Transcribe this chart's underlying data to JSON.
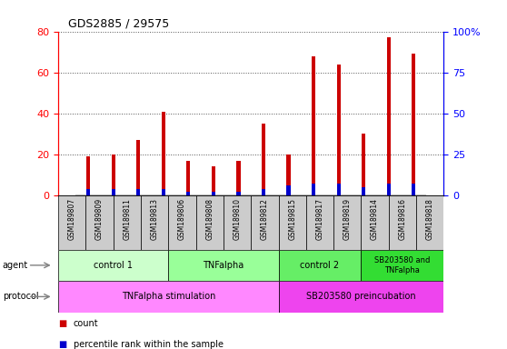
{
  "title": "GDS2885 / 29575",
  "samples": [
    "GSM189807",
    "GSM189809",
    "GSM189811",
    "GSM189813",
    "GSM189806",
    "GSM189808",
    "GSM189810",
    "GSM189812",
    "GSM189815",
    "GSM189817",
    "GSM189819",
    "GSM189814",
    "GSM189816",
    "GSM189818"
  ],
  "red_values": [
    19,
    20,
    27,
    41,
    17,
    14,
    17,
    35,
    20,
    68,
    64,
    30,
    77,
    69
  ],
  "blue_values": [
    3,
    3,
    3,
    3,
    2,
    2,
    2,
    3,
    5,
    6,
    6,
    4,
    6,
    6
  ],
  "ylim_left": [
    0,
    80
  ],
  "ylim_right": [
    0,
    100
  ],
  "left_ticks": [
    0,
    20,
    40,
    60,
    80
  ],
  "right_ticks": [
    0,
    25,
    50,
    75,
    100
  ],
  "right_tick_labels": [
    "0",
    "25",
    "50",
    "75",
    "100%"
  ],
  "agent_groups": [
    {
      "label": "control 1",
      "start": 0,
      "end": 4,
      "color": "#ccffcc"
    },
    {
      "label": "TNFalpha",
      "start": 4,
      "end": 8,
      "color": "#99ff99"
    },
    {
      "label": "control 2",
      "start": 8,
      "end": 11,
      "color": "#66ee66"
    },
    {
      "label": "SB203580 and\nTNFalpha",
      "start": 11,
      "end": 14,
      "color": "#33dd33"
    }
  ],
  "protocol_groups": [
    {
      "label": "TNFalpha stimulation",
      "start": 0,
      "end": 8,
      "color": "#ff88ff"
    },
    {
      "label": "SB203580 preincubation",
      "start": 8,
      "end": 14,
      "color": "#ee44ee"
    }
  ],
  "bar_width": 0.15,
  "red_color": "#cc0000",
  "blue_color": "#0000cc",
  "grid_color": "#555555",
  "background_color": "#ffffff",
  "xticklabel_bg": "#cccccc"
}
